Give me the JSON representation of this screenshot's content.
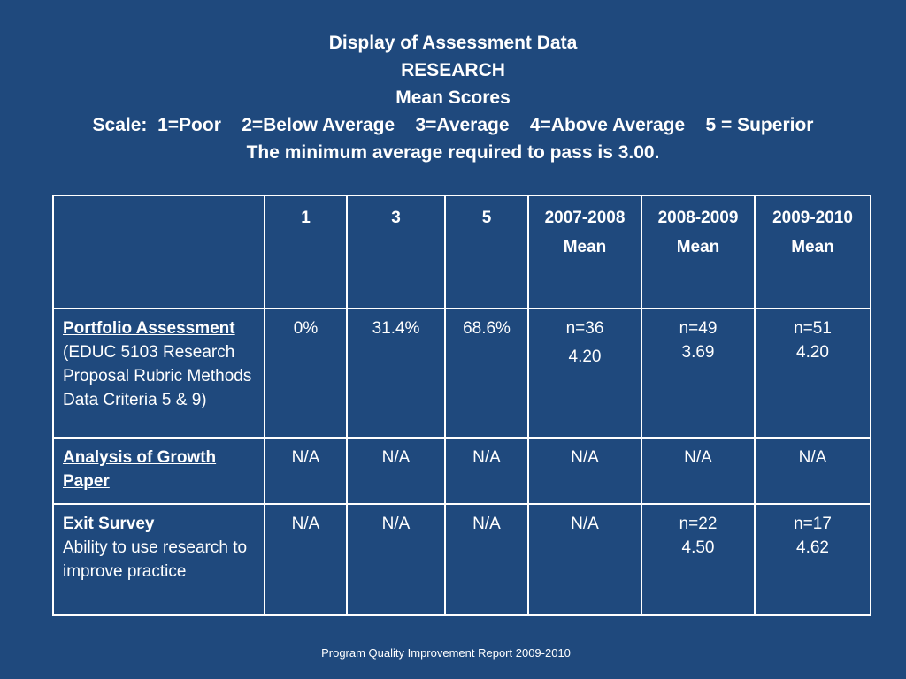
{
  "header": {
    "line1": "Display of Assessment Data",
    "line2": "RESEARCH",
    "line3": "Mean Scores",
    "line4": "Scale:  1=Poor    2=Below Average    3=Average    4=Above Average    5 = Superior",
    "line5": "The minimum average required to pass is 3.00."
  },
  "table": {
    "columns": [
      {
        "top": "",
        "bottom": ""
      },
      {
        "top": "1",
        "bottom": ""
      },
      {
        "top": "3",
        "bottom": ""
      },
      {
        "top": "5",
        "bottom": ""
      },
      {
        "top": "2007-2008",
        "bottom": "Mean"
      },
      {
        "top": "2008-2009",
        "bottom": "Mean"
      },
      {
        "top": "2009-2010",
        "bottom": "Mean"
      }
    ],
    "rows": [
      {
        "title": "Portfolio Assessment",
        "desc": "(EDUC 5103 Research Proposal Rubric Methods Data Criteria 5 & 9)",
        "c1": "0%",
        "c3": "31.4%",
        "c5": "68.6%",
        "y2007": {
          "n": "n=36",
          "mean": "4.20"
        },
        "y2008": {
          "n": "n=49",
          "mean": "3.69"
        },
        "y2009": {
          "n": "n=51",
          "mean": "4.20"
        }
      },
      {
        "title": "Analysis of Growth Paper",
        "desc": "",
        "c1": "N/A",
        "c3": "N/A",
        "c5": "N/A",
        "y2007": {
          "n": "N/A",
          "mean": ""
        },
        "y2008": {
          "n": "N/A",
          "mean": ""
        },
        "y2009": {
          "n": "N/A",
          "mean": ""
        }
      },
      {
        "title": "Exit Survey",
        "desc": "Ability to use research to improve practice",
        "c1": "N/A",
        "c3": "N/A",
        "c5": "N/A",
        "y2007": {
          "n": "N/A",
          "mean": ""
        },
        "y2008": {
          "n": "n=22",
          "mean": "4.50"
        },
        "y2009": {
          "n": "n=17",
          "mean": "4.62"
        }
      }
    ]
  },
  "footer": "Program Quality Improvement Report  2009-2010",
  "colors": {
    "background": "#1f497d",
    "text": "#ffffff",
    "border": "#ffffff"
  }
}
